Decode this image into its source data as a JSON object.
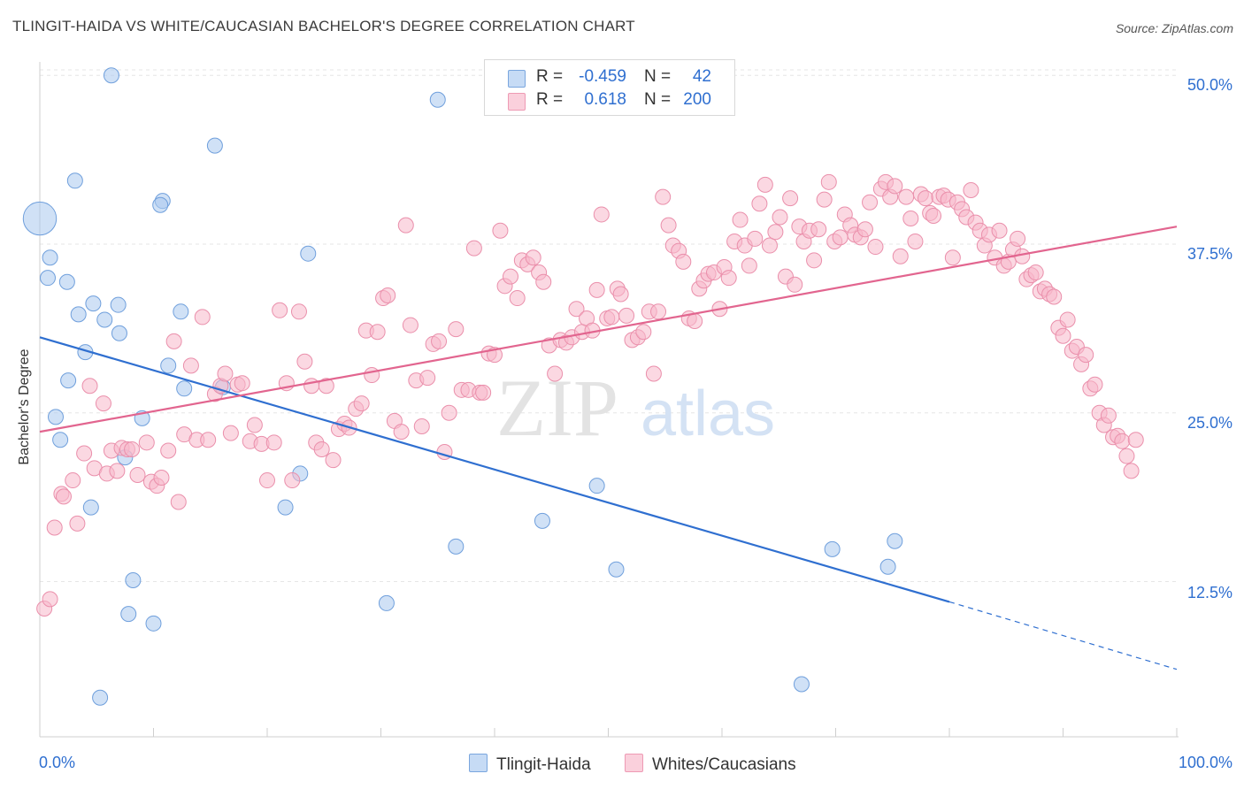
{
  "title": "TLINGIT-HAIDA VS WHITE/CAUCASIAN BACHELOR'S DEGREE CORRELATION CHART",
  "source": "Source: ZipAtlas.com",
  "watermark": {
    "zip": "ZIP",
    "atlas": "atlas"
  },
  "legend": {
    "rows": [
      {
        "r_label": "R =",
        "r_value": "-0.459",
        "n_label": "N =",
        "n_value": "42",
        "color": "#a9c8ee"
      },
      {
        "r_label": "R =",
        "r_value": "0.618",
        "n_label": "N =",
        "n_value": "200",
        "color": "#f7b8cb"
      }
    ]
  },
  "chart_data": {
    "type": "scatter",
    "title": "TLINGIT-HAIDA VS WHITE/CAUCASIAN BACHELOR'S DEGREE CORRELATION CHART",
    "xlabel": "",
    "ylabel": "Bachelor's Degree",
    "xlim": [
      0,
      100
    ],
    "ylim": [
      1,
      51
    ],
    "x_tick_labels": [
      "0.0%",
      "100.0%"
    ],
    "y_ticks": [
      12.5,
      25.0,
      37.5,
      50.0
    ],
    "y_tick_labels": [
      "12.5%",
      "25.0%",
      "37.5%",
      "50.0%"
    ],
    "grid": true,
    "legend_position": "top-center",
    "series": [
      {
        "name": "Tlingit-Haida",
        "color": "#a9c8ee",
        "stroke": "#6f9fdc",
        "r": -0.459,
        "n": 42,
        "trend": {
          "x0": 0,
          "y0": 30.6,
          "x1": 80,
          "y1": 11.0,
          "dash_to_x": 100,
          "dash_to_y": 6.0,
          "color": "#2f6fd0"
        },
        "points": [
          [
            0.0,
            39.4,
            2.2
          ],
          [
            6.3,
            50.0,
            1
          ],
          [
            35.0,
            48.2,
            1
          ],
          [
            15.4,
            44.8,
            1
          ],
          [
            3.1,
            42.2,
            1
          ],
          [
            10.8,
            40.7,
            1
          ],
          [
            10.6,
            40.4,
            1
          ],
          [
            0.9,
            36.5,
            1
          ],
          [
            23.6,
            36.8,
            1
          ],
          [
            0.7,
            35.0,
            1
          ],
          [
            2.4,
            34.7,
            1
          ],
          [
            4.7,
            33.1,
            1
          ],
          [
            6.9,
            33.0,
            1
          ],
          [
            3.4,
            32.3,
            1
          ],
          [
            12.4,
            32.5,
            1
          ],
          [
            5.7,
            31.9,
            1
          ],
          [
            7.0,
            30.9,
            1
          ],
          [
            4.0,
            29.5,
            1
          ],
          [
            11.3,
            28.5,
            1
          ],
          [
            2.5,
            27.4,
            1
          ],
          [
            12.7,
            26.8,
            1
          ],
          [
            16.1,
            26.9,
            1
          ],
          [
            1.4,
            24.7,
            1
          ],
          [
            9.0,
            24.6,
            1
          ],
          [
            1.8,
            23.0,
            1
          ],
          [
            7.5,
            21.7,
            1
          ],
          [
            22.9,
            20.5,
            1
          ],
          [
            49.0,
            19.6,
            1
          ],
          [
            4.5,
            18.0,
            1
          ],
          [
            21.6,
            18.0,
            1
          ],
          [
            44.2,
            17.0,
            1
          ],
          [
            36.6,
            15.1,
            1
          ],
          [
            75.2,
            15.5,
            1
          ],
          [
            69.7,
            14.9,
            1
          ],
          [
            50.7,
            13.4,
            1
          ],
          [
            74.6,
            13.6,
            1
          ],
          [
            8.2,
            12.6,
            1
          ],
          [
            30.5,
            10.9,
            1
          ],
          [
            7.8,
            10.1,
            1
          ],
          [
            10.0,
            9.4,
            1
          ],
          [
            67.0,
            4.9,
            1
          ],
          [
            5.3,
            3.9,
            1
          ]
        ]
      },
      {
        "name": "Whites/Caucasians",
        "color": "#f7b8cb",
        "stroke": "#ea8fab",
        "r": 0.618,
        "n": 200,
        "trend": {
          "x0": 0,
          "y0": 23.6,
          "x1": 100,
          "y1": 38.8,
          "color": "#e2658f"
        },
        "points": [
          [
            0.4,
            10.5
          ],
          [
            0.9,
            11.2
          ],
          [
            1.3,
            16.5
          ],
          [
            1.9,
            19.0
          ],
          [
            2.1,
            18.8
          ],
          [
            2.9,
            20.0
          ],
          [
            3.3,
            16.8
          ],
          [
            3.9,
            22.0
          ],
          [
            4.4,
            27.0
          ],
          [
            4.8,
            20.9
          ],
          [
            5.6,
            25.7
          ],
          [
            5.9,
            20.5
          ],
          [
            6.3,
            22.2
          ],
          [
            6.8,
            20.7
          ],
          [
            7.2,
            22.4
          ],
          [
            7.7,
            22.3
          ],
          [
            8.1,
            22.3
          ],
          [
            8.6,
            20.4
          ],
          [
            9.4,
            22.8
          ],
          [
            9.8,
            19.9
          ],
          [
            10.3,
            19.6
          ],
          [
            10.7,
            20.2
          ],
          [
            11.3,
            22.2
          ],
          [
            11.8,
            30.3
          ],
          [
            12.2,
            18.4
          ],
          [
            12.7,
            23.4
          ],
          [
            13.3,
            28.5
          ],
          [
            13.8,
            23.0
          ],
          [
            14.3,
            32.1
          ],
          [
            14.8,
            23.0
          ],
          [
            15.4,
            26.4
          ],
          [
            15.9,
            27.0
          ],
          [
            16.3,
            27.9
          ],
          [
            16.8,
            23.5
          ],
          [
            17.4,
            27.1
          ],
          [
            17.8,
            27.2
          ],
          [
            18.5,
            22.9
          ],
          [
            18.9,
            24.1
          ],
          [
            19.5,
            22.7
          ],
          [
            20.0,
            20.0
          ],
          [
            20.6,
            22.8
          ],
          [
            21.1,
            32.6
          ],
          [
            21.7,
            27.2
          ],
          [
            22.2,
            20.0
          ],
          [
            22.8,
            32.5
          ],
          [
            23.3,
            28.8
          ],
          [
            23.9,
            27.0
          ],
          [
            24.3,
            22.8
          ],
          [
            24.8,
            22.3
          ],
          [
            25.2,
            27.0
          ],
          [
            25.8,
            21.5
          ],
          [
            26.3,
            23.8
          ],
          [
            26.8,
            24.2
          ],
          [
            27.2,
            23.9
          ],
          [
            27.8,
            25.3
          ],
          [
            28.3,
            25.7
          ],
          [
            28.7,
            31.1
          ],
          [
            29.2,
            27.8
          ],
          [
            29.7,
            31.0
          ],
          [
            30.2,
            33.5
          ],
          [
            30.6,
            33.7
          ],
          [
            31.2,
            24.4
          ],
          [
            31.8,
            23.6
          ],
          [
            32.2,
            38.9
          ],
          [
            32.6,
            31.5
          ],
          [
            33.1,
            27.4
          ],
          [
            33.6,
            24.0
          ],
          [
            34.1,
            27.6
          ],
          [
            34.6,
            30.1
          ],
          [
            35.1,
            30.3
          ],
          [
            35.6,
            22.1
          ],
          [
            36.0,
            25.0
          ],
          [
            36.6,
            31.2
          ],
          [
            37.1,
            26.7
          ],
          [
            37.7,
            26.7
          ],
          [
            38.2,
            37.2
          ],
          [
            38.7,
            26.5
          ],
          [
            39.0,
            26.5
          ],
          [
            39.5,
            29.4
          ],
          [
            40.0,
            29.3
          ],
          [
            40.5,
            38.5
          ],
          [
            40.9,
            34.4
          ],
          [
            41.4,
            35.1
          ],
          [
            42.0,
            33.5
          ],
          [
            42.4,
            36.3
          ],
          [
            42.9,
            36.0
          ],
          [
            43.4,
            36.5
          ],
          [
            43.9,
            35.4
          ],
          [
            44.3,
            34.7
          ],
          [
            44.8,
            30.0
          ],
          [
            45.3,
            27.9
          ],
          [
            45.8,
            30.4
          ],
          [
            46.3,
            30.2
          ],
          [
            46.8,
            30.6
          ],
          [
            47.2,
            32.7
          ],
          [
            47.7,
            31.0
          ],
          [
            48.1,
            32.0
          ],
          [
            48.6,
            31.1
          ],
          [
            49.0,
            34.1
          ],
          [
            49.4,
            39.7
          ],
          [
            49.9,
            32.0
          ],
          [
            50.3,
            32.1
          ],
          [
            50.8,
            34.2
          ],
          [
            51.1,
            33.8
          ],
          [
            51.6,
            32.2
          ],
          [
            52.1,
            30.4
          ],
          [
            52.6,
            30.6
          ],
          [
            53.1,
            31.0
          ],
          [
            53.6,
            32.5
          ],
          [
            54.0,
            27.9
          ],
          [
            54.4,
            32.5
          ],
          [
            54.8,
            41.0
          ],
          [
            55.3,
            38.9
          ],
          [
            55.7,
            37.4
          ],
          [
            56.2,
            37.0
          ],
          [
            56.6,
            36.2
          ],
          [
            57.1,
            32.0
          ],
          [
            57.6,
            31.8
          ],
          [
            58.0,
            34.2
          ],
          [
            58.4,
            34.8
          ],
          [
            58.8,
            35.3
          ],
          [
            59.3,
            35.4
          ],
          [
            59.8,
            32.7
          ],
          [
            60.2,
            35.8
          ],
          [
            60.6,
            35.0
          ],
          [
            61.1,
            37.7
          ],
          [
            61.6,
            39.3
          ],
          [
            62.0,
            37.4
          ],
          [
            62.4,
            35.9
          ],
          [
            62.9,
            37.9
          ],
          [
            63.3,
            40.5
          ],
          [
            63.8,
            41.9
          ],
          [
            64.2,
            37.4
          ],
          [
            64.7,
            38.4
          ],
          [
            65.1,
            39.5
          ],
          [
            65.6,
            35.1
          ],
          [
            66.0,
            40.9
          ],
          [
            66.4,
            34.5
          ],
          [
            66.8,
            38.8
          ],
          [
            67.2,
            37.7
          ],
          [
            67.7,
            38.5
          ],
          [
            68.1,
            36.3
          ],
          [
            68.5,
            38.6
          ],
          [
            69.0,
            40.8
          ],
          [
            69.4,
            42.1
          ],
          [
            69.9,
            37.7
          ],
          [
            70.4,
            38.0
          ],
          [
            70.8,
            39.7
          ],
          [
            71.3,
            38.9
          ],
          [
            71.7,
            38.2
          ],
          [
            72.2,
            38.0
          ],
          [
            72.6,
            38.6
          ],
          [
            73.0,
            40.6
          ],
          [
            73.5,
            37.3
          ],
          [
            74.0,
            41.6
          ],
          [
            74.4,
            42.1
          ],
          [
            74.8,
            41.0
          ],
          [
            75.2,
            41.8
          ],
          [
            75.7,
            36.6
          ],
          [
            76.2,
            41.0
          ],
          [
            76.6,
            39.4
          ],
          [
            77.0,
            37.7
          ],
          [
            77.5,
            41.2
          ],
          [
            77.9,
            40.9
          ],
          [
            78.3,
            39.8
          ],
          [
            78.6,
            39.6
          ],
          [
            79.1,
            41.0
          ],
          [
            79.5,
            41.1
          ],
          [
            79.9,
            40.8
          ],
          [
            80.3,
            36.5
          ],
          [
            80.7,
            40.6
          ],
          [
            81.1,
            40.1
          ],
          [
            81.5,
            39.5
          ],
          [
            81.9,
            41.5
          ],
          [
            82.3,
            39.1
          ],
          [
            82.7,
            38.5
          ],
          [
            83.1,
            37.4
          ],
          [
            83.5,
            38.2
          ],
          [
            84.0,
            36.5
          ],
          [
            84.4,
            38.5
          ],
          [
            84.8,
            35.9
          ],
          [
            85.2,
            36.2
          ],
          [
            85.6,
            37.1
          ],
          [
            86.0,
            37.9
          ],
          [
            86.4,
            36.6
          ],
          [
            86.8,
            34.9
          ],
          [
            87.2,
            35.2
          ],
          [
            87.6,
            35.4
          ],
          [
            88.0,
            34.0
          ],
          [
            88.4,
            34.2
          ],
          [
            88.8,
            33.8
          ],
          [
            89.2,
            33.6
          ],
          [
            89.6,
            31.3
          ],
          [
            90.0,
            30.7
          ],
          [
            90.4,
            31.9
          ],
          [
            90.8,
            29.6
          ],
          [
            91.2,
            29.9
          ],
          [
            91.6,
            28.6
          ],
          [
            92.0,
            29.3
          ],
          [
            92.4,
            26.8
          ],
          [
            92.8,
            27.1
          ],
          [
            93.2,
            25.0
          ],
          [
            93.6,
            24.1
          ],
          [
            94.0,
            24.8
          ],
          [
            94.4,
            23.2
          ],
          [
            94.8,
            23.3
          ],
          [
            95.2,
            22.9
          ],
          [
            95.6,
            21.8
          ],
          [
            96.0,
            20.7
          ],
          [
            96.4,
            23.0
          ]
        ]
      }
    ]
  }
}
